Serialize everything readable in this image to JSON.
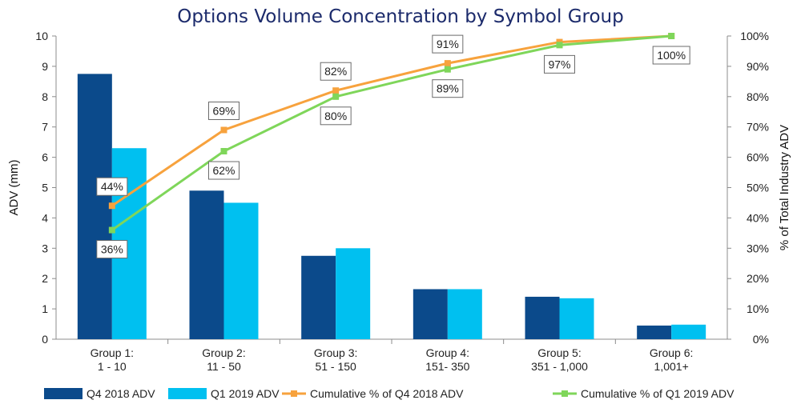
{
  "chart_data": {
    "type": "bar",
    "title": "Options Volume Concentration by Symbol Group",
    "ylabel": "ADV (mm)",
    "y2label": "% of Total Industry ADV",
    "ylim": [
      0,
      10
    ],
    "y2lim": [
      0,
      100
    ],
    "yticks": [
      "0",
      "1",
      "2",
      "3",
      "4",
      "5",
      "6",
      "7",
      "8",
      "9",
      "10"
    ],
    "y2ticks": [
      "0%",
      "10%",
      "20%",
      "30%",
      "40%",
      "50%",
      "60%",
      "70%",
      "80%",
      "90%",
      "100%"
    ],
    "categories": [
      [
        "Group 1:",
        "1 - 10"
      ],
      [
        "Group 2:",
        "11 - 50"
      ],
      [
        "Group 3:",
        "51 - 150"
      ],
      [
        "Group 4:",
        "151- 350"
      ],
      [
        "Group 5:",
        "351 - 1,000"
      ],
      [
        "Group 6:",
        "1,001+"
      ]
    ],
    "series": [
      {
        "name": "Q4 2018 ADV",
        "type": "bar",
        "axis": "left",
        "color": "#0b4a8b",
        "values": [
          8.75,
          4.9,
          2.75,
          1.65,
          1.4,
          0.45
        ]
      },
      {
        "name": "Q1 2019 ADV",
        "type": "bar",
        "axis": "left",
        "color": "#00c0f0",
        "values": [
          6.3,
          4.5,
          3.0,
          1.65,
          1.35,
          0.48
        ]
      },
      {
        "name": "Cumulative % of Q4 2018 ADV",
        "type": "line",
        "axis": "right",
        "color": "#f7a23d",
        "values": [
          44,
          69,
          82,
          91,
          98,
          100
        ],
        "labels": [
          "44%",
          "69%",
          "82%",
          "91%",
          "",
          ""
        ]
      },
      {
        "name": "Cumulative % of Q1 2019 ADV",
        "type": "line",
        "axis": "right",
        "color": "#7fd65a",
        "values": [
          36,
          62,
          80,
          89,
          97,
          100
        ],
        "labels": [
          "36%",
          "62%",
          "80%",
          "89%",
          "97%",
          "100%"
        ]
      }
    ],
    "legend_position": "bottom",
    "grid": false
  }
}
